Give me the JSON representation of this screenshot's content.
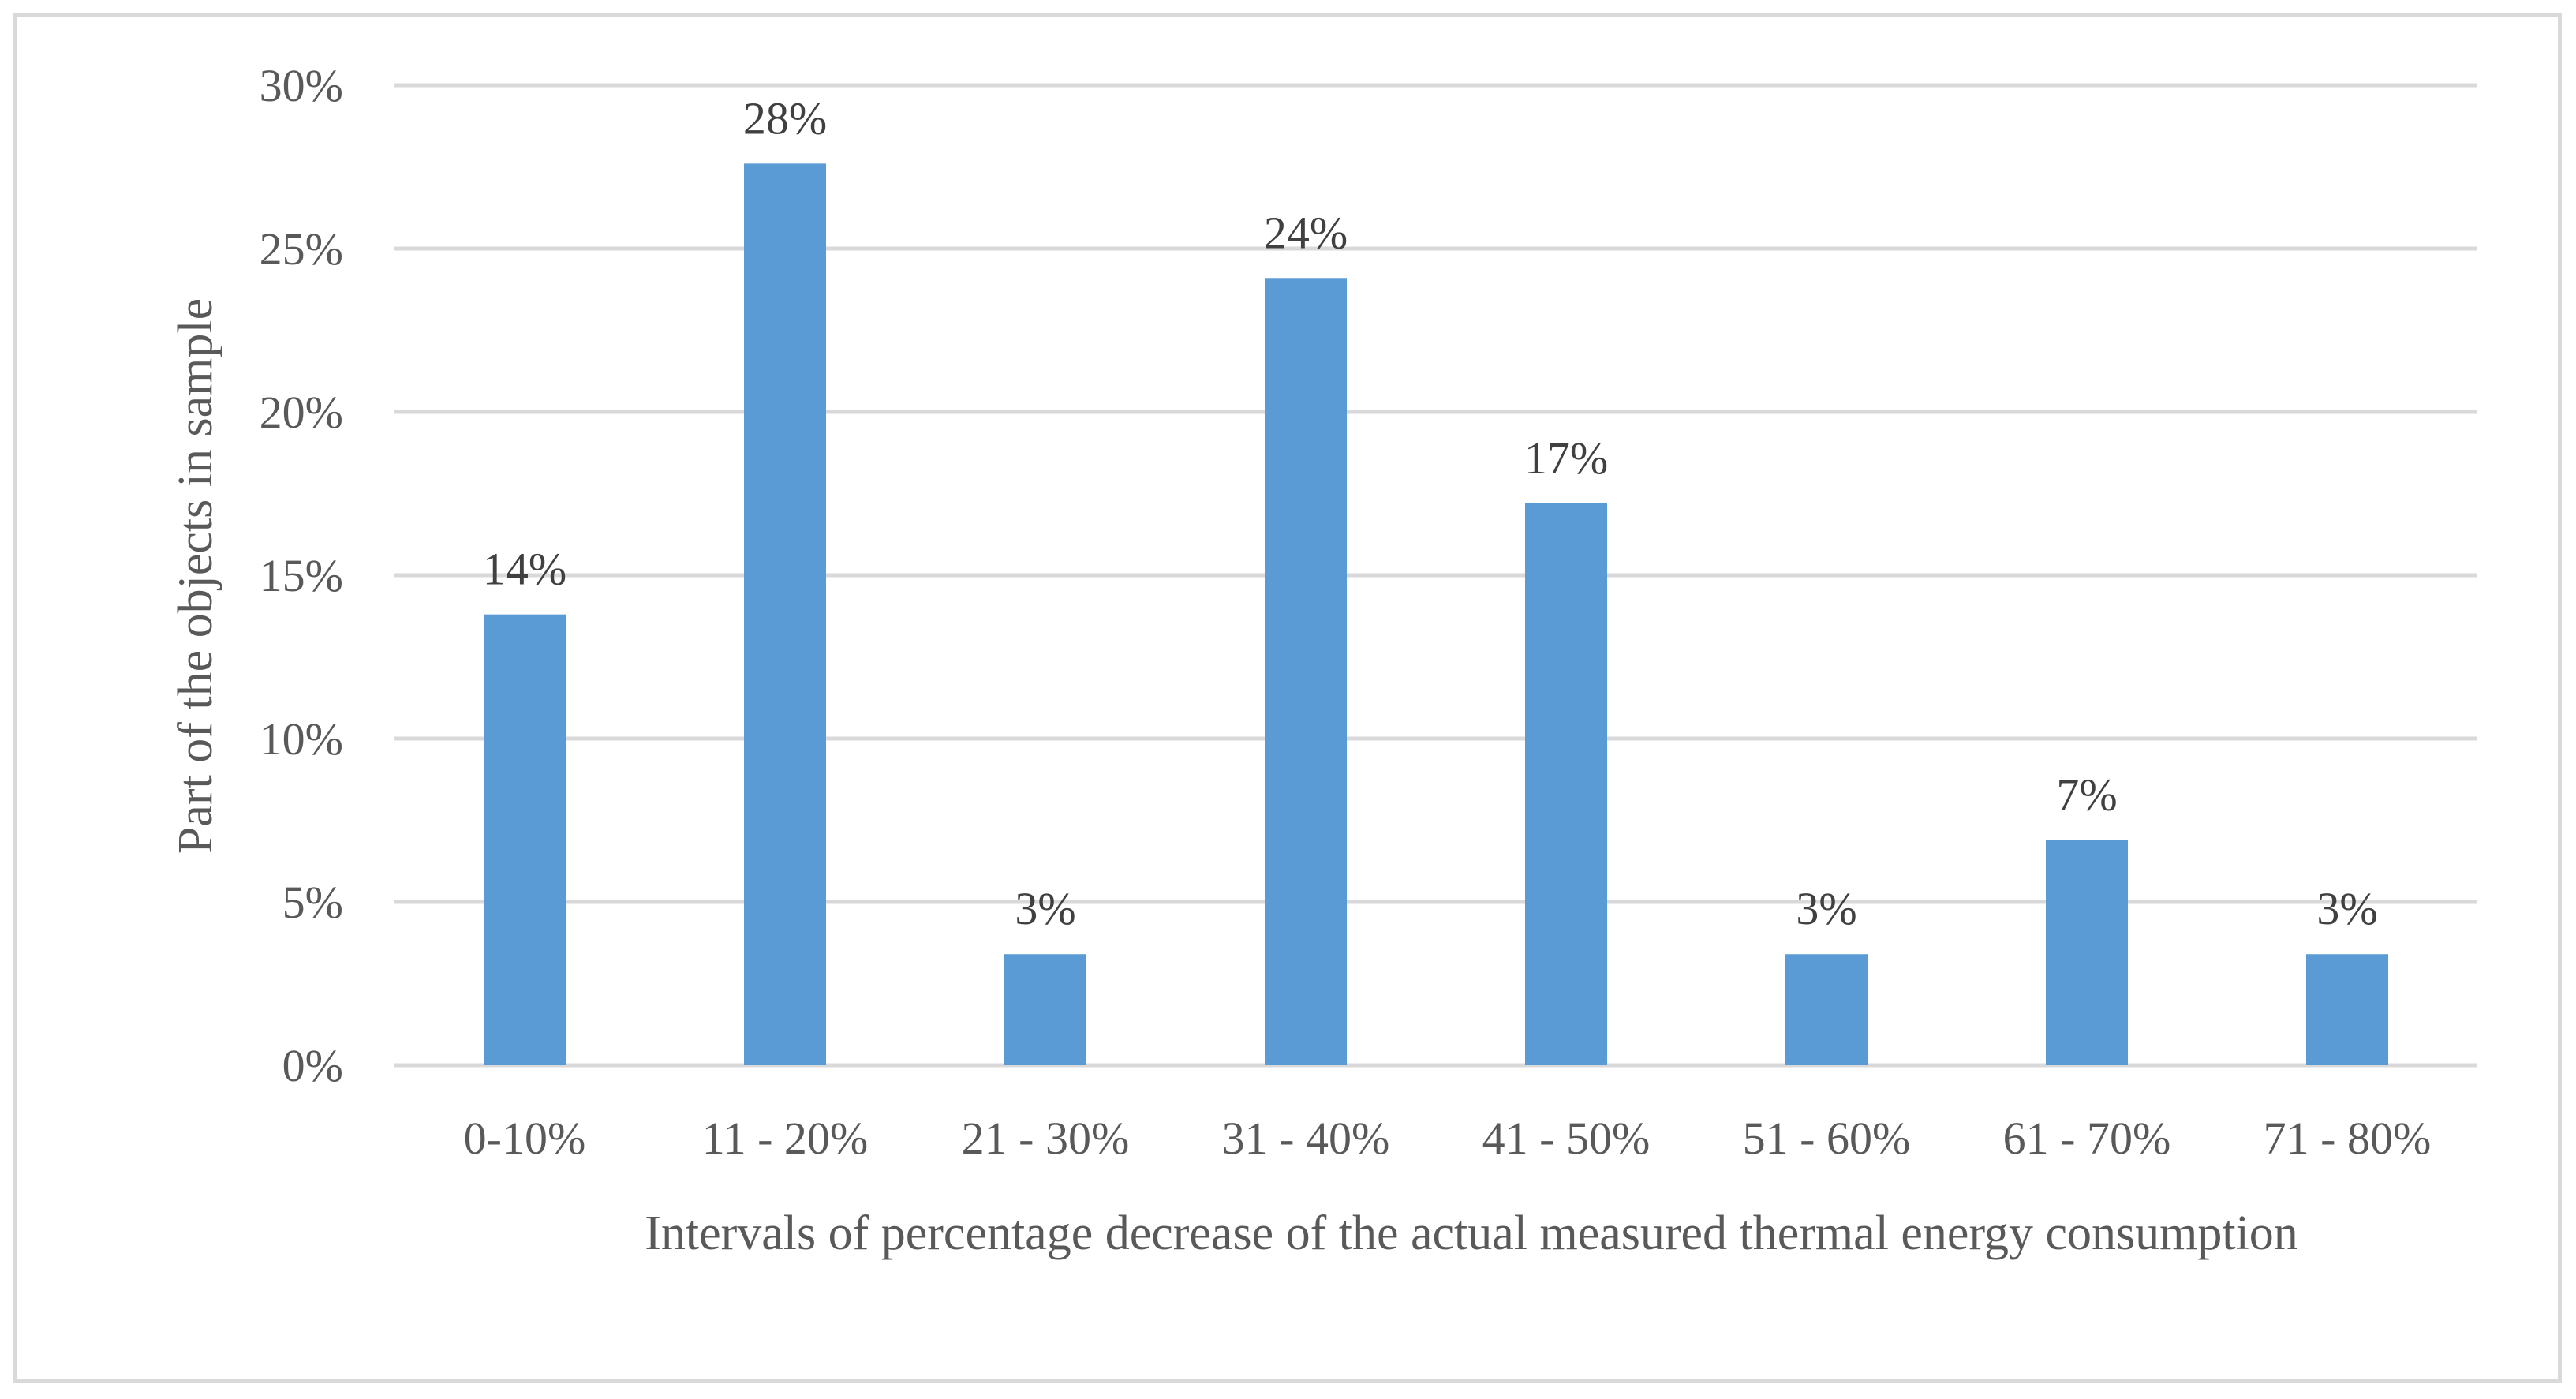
{
  "chart_data": {
    "type": "bar",
    "title": "",
    "xlabel": "Intervals of percentage decrease of the actual measured thermal energy consumption",
    "ylabel": "Part of the objects in sample",
    "categories": [
      "0-10%",
      "11 - 20%",
      "21 - 30%",
      "31 - 40%",
      "41 - 50%",
      "51 - 60%",
      "61 - 70%",
      "71 - 80%"
    ],
    "values": [
      13.8,
      27.6,
      3.4,
      24.1,
      17.2,
      3.4,
      6.9,
      3.4
    ],
    "data_labels": [
      "14%",
      "28%",
      "3%",
      "24%",
      "17%",
      "3%",
      "7%",
      "3%"
    ],
    "ylim": [
      0,
      30
    ],
    "yticks": [
      0,
      5,
      10,
      15,
      20,
      25,
      30
    ],
    "ytick_labels": [
      "0%",
      "5%",
      "10%",
      "15%",
      "20%",
      "25%",
      "30%"
    ],
    "grid": true,
    "legend": "none",
    "bar_color": "#5b9bd5"
  }
}
